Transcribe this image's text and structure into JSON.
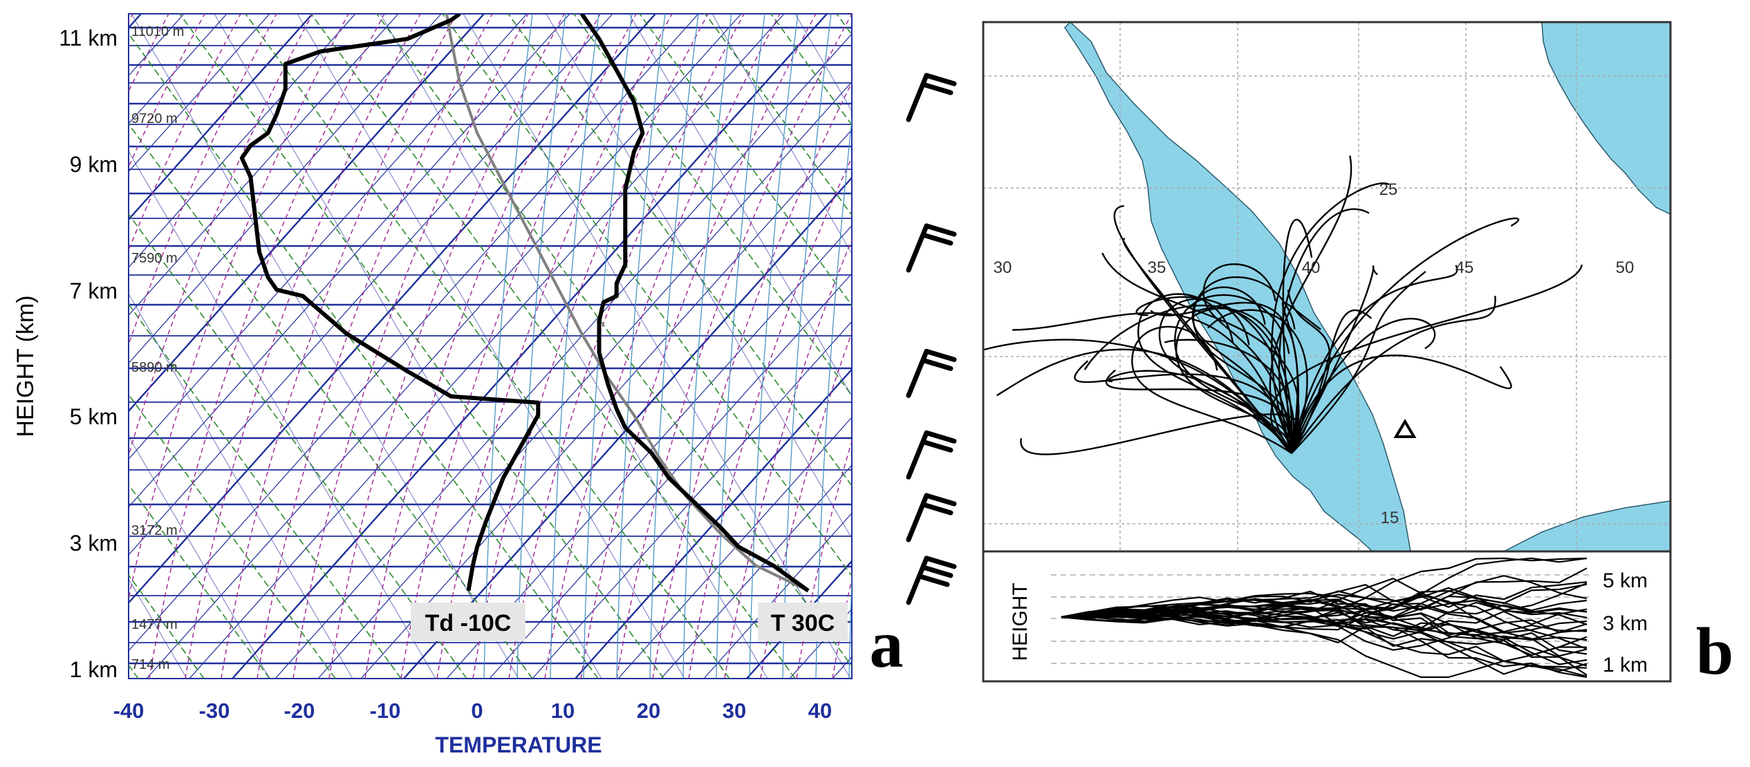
{
  "panel_a": {
    "letter": "a",
    "ylabel": "HEIGHT (km)",
    "xlabel": "TEMPERATURE",
    "height_ticks": [
      "1 km",
      "3 km",
      "5 km",
      "7 km",
      "9 km",
      "11 km"
    ],
    "temp_ticks": [
      "-40",
      "-30",
      "-20",
      "-10",
      "0",
      "10",
      "20",
      "30",
      "40"
    ],
    "level_labels": [
      "714 m",
      "1477 m",
      "3172 m",
      "5890 m",
      "7590 m",
      "9720 m",
      "11010 m"
    ],
    "dewpoint_label": "Td -10C",
    "temperature_label": "T 30C",
    "colors": {
      "isobar": "#1f2f9c",
      "isotherm": "#1f2f9c",
      "dry_adiabat": "#2c8a2c",
      "moist_adiabat": "#a0309a",
      "mixing_ratio": "#3c8cbe",
      "temperature": "#000000",
      "dewpoint": "#000000",
      "parcel": "#808080"
    }
  },
  "panel_b": {
    "letter": "b",
    "lon_labels": [
      "30",
      "35",
      "40",
      "45",
      "50"
    ],
    "lat_labels": [
      "25",
      "15"
    ],
    "height_label": "HEIGHT",
    "height_ticks": [
      "5 km",
      "3 km",
      "1 km"
    ],
    "colors": {
      "water": "#8cd3e8",
      "land": "#ffffff",
      "grid": "#aaaaaa",
      "trajectory": "#000000"
    }
  },
  "chart_data": [
    {
      "type": "line",
      "title": "",
      "xlabel": "TEMPERATURE",
      "ylabel": "HEIGHT (km)",
      "xlim": [
        -40,
        43
      ],
      "ylim_km": [
        0.8,
        11.4
      ],
      "series": [
        {
          "name": "T 30C",
          "points": [
            [
              38,
              2.2
            ],
            [
              34,
              2.6
            ],
            [
              30,
              2.9
            ],
            [
              28,
              3.2
            ],
            [
              25,
              3.6
            ],
            [
              22,
              4.0
            ],
            [
              20,
              4.4
            ],
            [
              17,
              4.8
            ],
            [
              16,
              5.1
            ],
            [
              15,
              5.5
            ],
            [
              14,
              6.0
            ],
            [
              14,
              6.5
            ],
            [
              14.5,
              6.8
            ],
            [
              16,
              6.9
            ],
            [
              16,
              7.1
            ],
            [
              17,
              7.4
            ],
            [
              17,
              8.0
            ],
            [
              17,
              8.6
            ],
            [
              18,
              9.2
            ],
            [
              19,
              9.5
            ],
            [
              18,
              10.0
            ],
            [
              16,
              10.5
            ],
            [
              14,
              11.0
            ],
            [
              12,
              11.4
            ]
          ]
        },
        {
          "name": "Td -10C",
          "points": [
            [
              -1,
              2.2
            ],
            [
              -0.5,
              2.6
            ],
            [
              0,
              2.9
            ],
            [
              1,
              3.3
            ],
            [
              3,
              4.0
            ],
            [
              5,
              4.5
            ],
            [
              7,
              5.0
            ],
            [
              7,
              5.2
            ],
            [
              -3,
              5.3
            ],
            [
              -8,
              5.7
            ],
            [
              -15,
              6.3
            ],
            [
              -20,
              6.9
            ],
            [
              -23,
              7.0
            ],
            [
              -24,
              7.2
            ],
            [
              -25,
              7.6
            ],
            [
              -25.5,
              8.2
            ],
            [
              -26,
              8.8
            ],
            [
              -27,
              9.1
            ],
            [
              -26,
              9.3
            ],
            [
              -24,
              9.5
            ],
            [
              -23,
              9.8
            ],
            [
              -22,
              10.2
            ],
            [
              -22,
              10.6
            ],
            [
              -18,
              10.8
            ],
            [
              -8,
              11.0
            ],
            [
              -3,
              11.3
            ],
            [
              -2,
              11.4
            ]
          ]
        },
        {
          "points": [
            [
              38,
              2.2
            ],
            [
              32,
              2.6
            ],
            [
              28,
              3.1
            ],
            [
              24,
              3.7
            ],
            [
              21,
              4.3
            ],
            [
              18,
              5.0
            ],
            [
              15,
              5.6
            ],
            [
              12,
              6.3
            ],
            [
              9,
              7.1
            ],
            [
              6,
              7.9
            ],
            [
              3,
              8.7
            ],
            [
              0,
              9.5
            ],
            [
              -2,
              10.3
            ],
            [
              -3,
              11.0
            ],
            [
              -3.5,
              11.4
            ]
          ]
        }
      ],
      "wind_barbs_km": [
        2.3,
        3.3,
        4.3,
        5.6,
        7.6,
        10.0
      ]
    },
    {
      "type": "line",
      "title": "",
      "xlabel": "",
      "ylabel": "HEIGHT",
      "height_ticks_km": [
        5,
        3,
        1
      ],
      "trajectory_count": 30
    }
  ]
}
